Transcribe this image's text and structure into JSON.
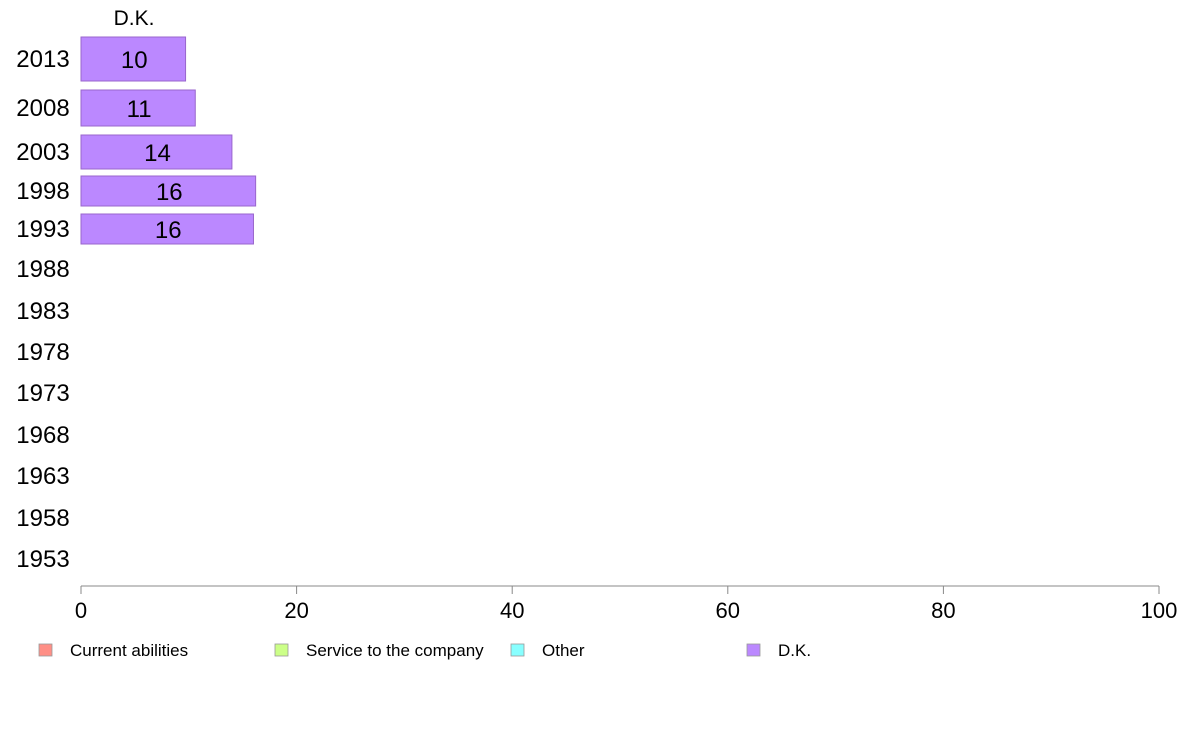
{
  "chart_data": {
    "type": "bar",
    "orientation": "horizontal",
    "stacked": true,
    "column_label": "D.K.",
    "categories": [
      "1953",
      "1958",
      "1963",
      "1968",
      "1973",
      "1978",
      "1983",
      "1988",
      "1993",
      "1998",
      "2003",
      "2008",
      "2013"
    ],
    "series": [
      {
        "name": "Current abilities",
        "color": "#ff8f86",
        "values": [
          null,
          null,
          null,
          null,
          null,
          null,
          null,
          null,
          null,
          null,
          null,
          null,
          null
        ]
      },
      {
        "name": "Service to the company",
        "color": "#ccff88",
        "values": [
          null,
          null,
          null,
          null,
          null,
          null,
          null,
          null,
          null,
          null,
          null,
          null,
          null
        ]
      },
      {
        "name": "Other",
        "color": "#88ffff",
        "values": [
          null,
          null,
          null,
          null,
          null,
          null,
          null,
          null,
          null,
          null,
          null,
          null,
          null
        ]
      },
      {
        "name": "D.K.",
        "color": "#bb88ff",
        "values": [
          null,
          null,
          null,
          null,
          null,
          null,
          null,
          null,
          16,
          16.2,
          14,
          10.6,
          9.7
        ]
      }
    ],
    "data_labels": {
      "1993": "16",
      "1998": "16",
      "2003": "14",
      "2008": "11",
      "2013": "10"
    },
    "x_ticks": [
      0,
      20,
      40,
      60,
      80,
      100
    ],
    "xlim": [
      0,
      100
    ],
    "grid": false,
    "legend_position": "bottom"
  }
}
